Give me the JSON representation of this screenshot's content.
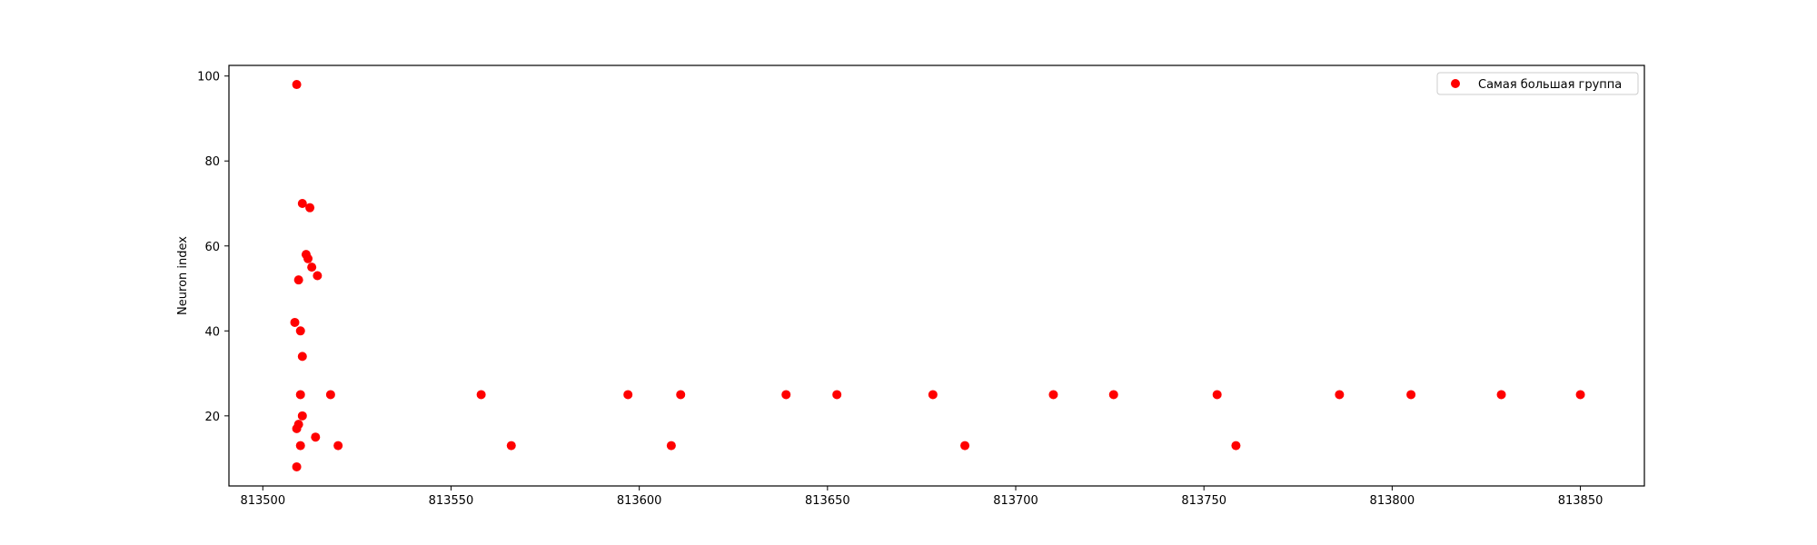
{
  "chart_data": {
    "type": "scatter",
    "title": "",
    "xlabel": "",
    "ylabel": "Neuron index",
    "xlim": [
      813491,
      813867
    ],
    "ylim": [
      3.5,
      102.5
    ],
    "xticks": [
      813500,
      813550,
      813600,
      813650,
      813700,
      813750,
      813800,
      813850
    ],
    "yticks": [
      20,
      40,
      60,
      80,
      100
    ],
    "xtick_labels": [
      "813500",
      "813550",
      "813600",
      "813650",
      "813700",
      "813750",
      "813800",
      "813850"
    ],
    "ytick_labels": [
      "20",
      "40",
      "60",
      "80",
      "100"
    ],
    "grid": false,
    "legend": {
      "position": "top-right",
      "entries": [
        "Самая большая группа"
      ]
    },
    "series": [
      {
        "name": "Самая большая группа",
        "color": "#ff0000",
        "points": [
          [
            813509,
            98
          ],
          [
            813510.5,
            70
          ],
          [
            813512.5,
            69
          ],
          [
            813511.5,
            58
          ],
          [
            813512,
            57
          ],
          [
            813513,
            55
          ],
          [
            813514.5,
            53
          ],
          [
            813509.5,
            52
          ],
          [
            813508.5,
            42
          ],
          [
            813510,
            40
          ],
          [
            813510.5,
            34
          ],
          [
            813510,
            25
          ],
          [
            813518,
            25
          ],
          [
            813510.5,
            20
          ],
          [
            813509.5,
            18
          ],
          [
            813509,
            17
          ],
          [
            813514,
            15
          ],
          [
            813510,
            13
          ],
          [
            813520,
            13
          ],
          [
            813509,
            8
          ],
          [
            813558,
            25
          ],
          [
            813566,
            13
          ],
          [
            813597,
            25
          ],
          [
            813608.5,
            13
          ],
          [
            813611,
            25
          ],
          [
            813639,
            25
          ],
          [
            813652.5,
            25
          ],
          [
            813678,
            25
          ],
          [
            813686.5,
            13
          ],
          [
            813710,
            25
          ],
          [
            813726,
            25
          ],
          [
            813753.5,
            25
          ],
          [
            813758.5,
            13
          ],
          [
            813786,
            25
          ],
          [
            813805,
            25
          ],
          [
            813829,
            25
          ],
          [
            813850,
            25
          ]
        ]
      }
    ]
  }
}
